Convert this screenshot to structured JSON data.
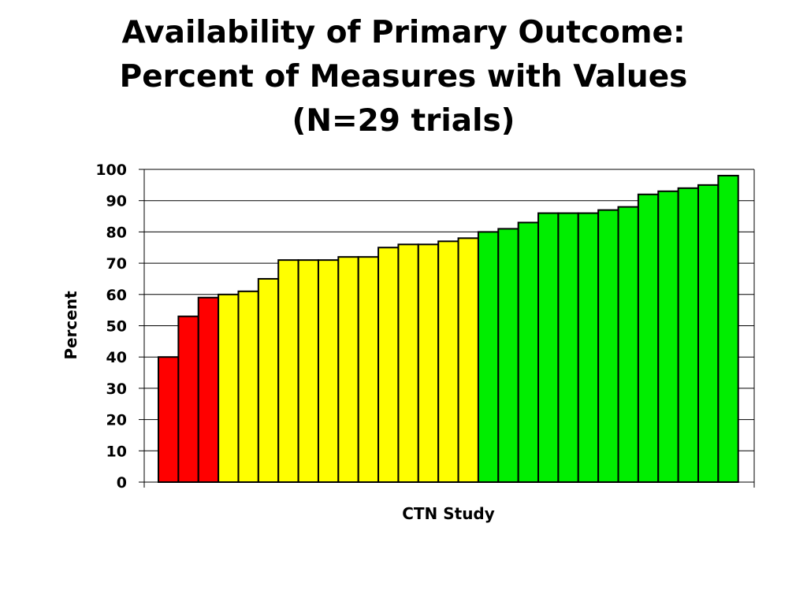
{
  "chart_data": {
    "type": "bar",
    "title": [
      "Availability of Primary Outcome:",
      "Percent of Measures with Values",
      "(N=29 trials)"
    ],
    "xlabel": "CTN Study",
    "ylabel": "Percent",
    "ylim": [
      0,
      100
    ],
    "yticks": [
      "0",
      "10",
      "20",
      "30",
      "40",
      "50",
      "60",
      "70",
      "80",
      "90",
      "100"
    ],
    "grid": true,
    "legend": "none",
    "values": [
      40,
      53,
      59,
      60,
      61,
      65,
      71,
      71,
      71,
      72,
      72,
      75,
      76,
      76,
      77,
      78,
      80,
      81,
      83,
      86,
      86,
      86,
      87,
      88,
      92,
      93,
      94,
      95,
      98
    ],
    "bar_colors": {
      "low": "#ff0000",
      "mid": "#ffff00",
      "high": "#00ee00"
    },
    "color_groups": [
      "low",
      "low",
      "low",
      "mid",
      "mid",
      "mid",
      "mid",
      "mid",
      "mid",
      "mid",
      "mid",
      "mid",
      "mid",
      "mid",
      "mid",
      "mid",
      "high",
      "high",
      "high",
      "high",
      "high",
      "high",
      "high",
      "high",
      "high",
      "high",
      "high",
      "high",
      "high"
    ]
  }
}
